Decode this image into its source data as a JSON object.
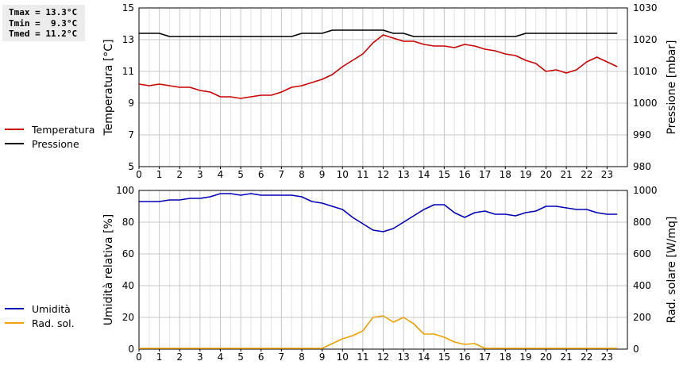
{
  "stats": {
    "tmax": "Tmax = 13.3°C",
    "tmin": "Tmin =  9.3°C",
    "tmed": "Tmed = 11.2°C"
  },
  "legend_top": [
    {
      "label": "Temperatura",
      "color": "#cc0000"
    },
    {
      "label": "Pressione",
      "color": "#000000"
    }
  ],
  "legend_bottom": [
    {
      "label": "Umidità",
      "color": "#0000bb"
    },
    {
      "label": "Rad. sol.",
      "color": "#f0a000"
    }
  ],
  "chart_data": [
    {
      "type": "line",
      "title": "",
      "x_ticks": [
        "0",
        "1",
        "2",
        "3",
        "4",
        "5",
        "6",
        "7",
        "8",
        "9",
        "10",
        "11",
        "12",
        "13",
        "14",
        "15",
        "16",
        "17",
        "18",
        "19",
        "20",
        "21",
        "22",
        "23"
      ],
      "xlim": [
        0,
        24
      ],
      "left_axis": {
        "label": "Temperatura [°C]",
        "ylim": [
          5,
          15
        ],
        "ticks": [
          5,
          7,
          9,
          11,
          13,
          15
        ]
      },
      "right_axis": {
        "label": "Pressione [mbar]",
        "ylim": [
          980,
          1030
        ],
        "ticks": [
          980,
          990,
          1000,
          1010,
          1020,
          1030
        ]
      },
      "series": [
        {
          "name": "Temperatura",
          "axis": "left",
          "color": "#cc0000",
          "x": [
            0,
            0.5,
            1,
            1.5,
            2,
            2.5,
            3,
            3.5,
            4,
            4.5,
            5,
            5.5,
            6,
            6.5,
            7,
            7.5,
            8,
            8.5,
            9,
            9.5,
            10,
            10.5,
            11,
            11.5,
            12,
            12.5,
            13,
            13.5,
            14,
            14.5,
            15,
            15.5,
            16,
            16.5,
            17,
            17.5,
            18,
            18.5,
            19,
            19.5,
            20,
            20.5,
            21,
            21.5,
            22,
            22.5,
            23,
            23.5
          ],
          "y": [
            10.2,
            10.1,
            10.2,
            10.1,
            10.0,
            10.0,
            9.8,
            9.7,
            9.4,
            9.4,
            9.3,
            9.4,
            9.5,
            9.5,
            9.7,
            10.0,
            10.1,
            10.3,
            10.5,
            10.8,
            11.3,
            11.7,
            12.1,
            12.8,
            13.3,
            13.1,
            12.9,
            12.9,
            12.7,
            12.6,
            12.6,
            12.5,
            12.7,
            12.6,
            12.4,
            12.3,
            12.1,
            12.0,
            11.7,
            11.5,
            11.0,
            11.1,
            10.9,
            11.1,
            11.6,
            11.9,
            11.6,
            11.3
          ]
        },
        {
          "name": "Pressione",
          "axis": "right",
          "color": "#000000",
          "x": [
            0,
            1,
            1.5,
            2,
            3,
            4,
            5,
            6,
            7,
            7.5,
            8,
            9,
            9.5,
            10,
            11,
            12,
            12.5,
            13,
            13.5,
            14,
            15,
            16,
            17,
            18,
            18.5,
            19,
            20,
            21,
            22,
            23,
            23.5
          ],
          "y": [
            1022,
            1022,
            1021,
            1021,
            1021,
            1021,
            1021,
            1021,
            1021,
            1021,
            1022,
            1022,
            1023,
            1023,
            1023,
            1023,
            1022,
            1022,
            1021,
            1021,
            1021,
            1021,
            1021,
            1021,
            1021,
            1022,
            1022,
            1022,
            1022,
            1022,
            1022
          ]
        }
      ]
    },
    {
      "type": "line",
      "title": "",
      "x_ticks": [
        "0",
        "1",
        "2",
        "3",
        "4",
        "5",
        "6",
        "7",
        "8",
        "9",
        "10",
        "11",
        "12",
        "13",
        "14",
        "15",
        "16",
        "17",
        "18",
        "19",
        "20",
        "21",
        "22",
        "23"
      ],
      "xlim": [
        0,
        24
      ],
      "left_axis": {
        "label": "Umidità relativa [%]",
        "ylim": [
          0,
          100
        ],
        "ticks": [
          0,
          20,
          40,
          60,
          80,
          100
        ]
      },
      "right_axis": {
        "label": "Rad. solare [W/mq]",
        "ylim": [
          0,
          1000
        ],
        "ticks": [
          0,
          200,
          400,
          600,
          800,
          1000
        ]
      },
      "series": [
        {
          "name": "Umidità",
          "axis": "left",
          "color": "#0000bb",
          "x": [
            0,
            0.5,
            1,
            1.5,
            2,
            2.5,
            3,
            3.5,
            4,
            4.5,
            5,
            5.5,
            6,
            6.5,
            7,
            7.5,
            8,
            8.5,
            9,
            9.5,
            10,
            10.5,
            11,
            11.5,
            12,
            12.5,
            13,
            13.5,
            14,
            14.5,
            15,
            15.5,
            16,
            16.5,
            17,
            17.5,
            18,
            18.5,
            19,
            19.5,
            20,
            20.5,
            21,
            21.5,
            22,
            22.5,
            23,
            23.5
          ],
          "y": [
            93,
            93,
            93,
            94,
            94,
            95,
            95,
            96,
            98,
            98,
            97,
            98,
            97,
            97,
            97,
            97,
            96,
            93,
            92,
            90,
            88,
            83,
            79,
            75,
            74,
            76,
            80,
            84,
            88,
            91,
            91,
            86,
            83,
            86,
            87,
            85,
            85,
            84,
            86,
            87,
            90,
            90,
            89,
            88,
            88,
            86,
            85,
            85
          ]
        },
        {
          "name": "Rad. sol.",
          "axis": "right",
          "color": "#f0a000",
          "x": [
            0,
            1,
            2,
            3,
            4,
            5,
            6,
            7,
            8,
            9,
            9.5,
            10,
            10.5,
            11,
            11.5,
            12,
            12.5,
            13,
            13.5,
            14,
            14.5,
            15,
            15.5,
            16,
            16.5,
            17,
            18,
            19,
            20,
            21,
            22,
            23,
            23.5
          ],
          "y": [
            5,
            5,
            5,
            5,
            5,
            5,
            5,
            5,
            5,
            5,
            35,
            65,
            85,
            115,
            200,
            210,
            170,
            200,
            160,
            95,
            95,
            75,
            45,
            30,
            35,
            5,
            5,
            5,
            5,
            5,
            5,
            5,
            5
          ]
        }
      ]
    }
  ]
}
